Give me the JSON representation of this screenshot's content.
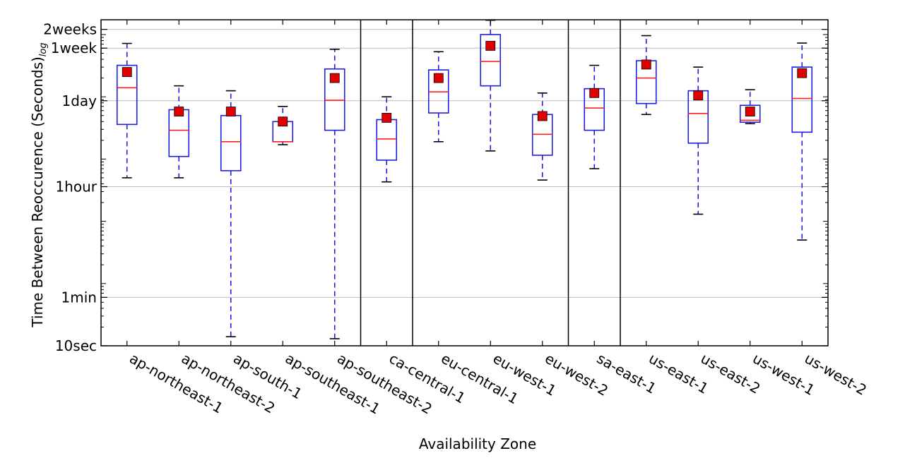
{
  "chart_data": {
    "type": "box",
    "xlabel": "Availability Zone",
    "ylabel": "Time Between Reoccurence (Seconds)",
    "ylabel_subscript": "log",
    "y_scale": "log",
    "ylim_seconds": [
      10,
      1728000
    ],
    "y_ticks": [
      {
        "label": "10sec",
        "value": 10
      },
      {
        "label": "1min",
        "value": 60
      },
      {
        "label": "1hour",
        "value": 3600
      },
      {
        "label": "1day",
        "value": 86400
      },
      {
        "label": "1week",
        "value": 604800
      },
      {
        "label": "2weeks",
        "value": 1209600
      }
    ],
    "grid": "horizontal",
    "group_separators_after": [
      "ap-southeast-2",
      "ca-central-1",
      "eu-west-2",
      "sa-east-1"
    ],
    "colors": {
      "box": "#1f1fdc",
      "median": "#ff2020",
      "mean_marker": "#e00000",
      "grid": "#bdbdbd"
    },
    "legend": "none",
    "categories": [
      "ap-northeast-1",
      "ap-northeast-2",
      "ap-south-1",
      "ap-southeast-1",
      "ap-southeast-2",
      "ca-central-1",
      "eu-central-1",
      "eu-west-1",
      "eu-west-2",
      "sa-east-1",
      "us-east-1",
      "us-east-2",
      "us-west-1",
      "us-west-2"
    ],
    "boxes": [
      {
        "whisker_low": 5000,
        "q1": 36000,
        "median": 140000,
        "q3": 320000,
        "whisker_high": 720000,
        "mean": 250000
      },
      {
        "whisker_low": 5000,
        "q1": 11000,
        "median": 29000,
        "q3": 62000,
        "whisker_high": 150000,
        "mean": 58000
      },
      {
        "whisker_low": 14,
        "q1": 6500,
        "median": 19000,
        "q3": 50000,
        "whisker_high": 125000,
        "mean": 58000
      },
      {
        "whisker_low": 17000,
        "q1": 19000,
        "median": 19000,
        "q3": 40000,
        "whisker_high": 70000,
        "mean": 40000
      },
      {
        "whisker_low": 13,
        "q1": 29000,
        "median": 88000,
        "q3": 280000,
        "whisker_high": 580000,
        "mean": 200000
      },
      {
        "whisker_low": 4300,
        "q1": 9600,
        "median": 21000,
        "q3": 43000,
        "whisker_high": 100000,
        "mean": 46000
      },
      {
        "whisker_low": 19000,
        "q1": 55000,
        "median": 120000,
        "q3": 270000,
        "whisker_high": 530000,
        "mean": 200000
      },
      {
        "whisker_low": 13500,
        "q1": 150000,
        "median": 370000,
        "q3": 1000000,
        "whisker_high": 1700000,
        "mean": 660000
      },
      {
        "whisker_low": 4600,
        "q1": 11500,
        "median": 25000,
        "q3": 52000,
        "whisker_high": 115000,
        "mean": 49000
      },
      {
        "whisker_low": 7000,
        "q1": 29000,
        "median": 66000,
        "q3": 135000,
        "whisker_high": 320000,
        "mean": 115000
      },
      {
        "whisker_low": 52000,
        "q1": 78000,
        "median": 200000,
        "q3": 380000,
        "whisker_high": 960000,
        "mean": 330000
      },
      {
        "whisker_low": 1300,
        "q1": 18000,
        "median": 54000,
        "q3": 125000,
        "whisker_high": 300000,
        "mean": 105000
      },
      {
        "whisker_low": 37000,
        "q1": 39000,
        "median": 42000,
        "q3": 73000,
        "whisker_high": 130000,
        "mean": 58000
      },
      {
        "whisker_low": 500,
        "q1": 27000,
        "median": 94000,
        "q3": 300000,
        "whisker_high": 730000,
        "mean": 240000
      }
    ]
  }
}
